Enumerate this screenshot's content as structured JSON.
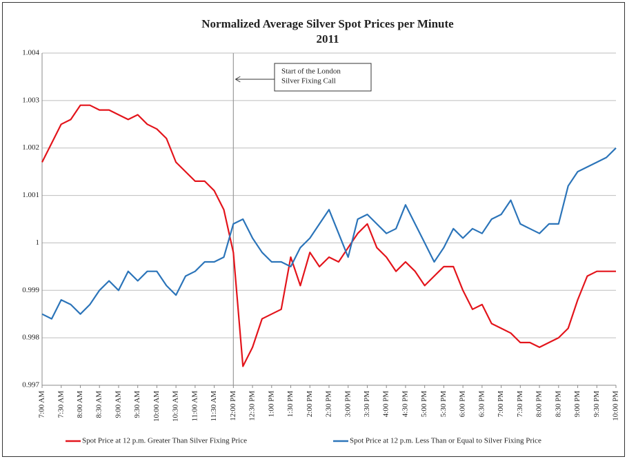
{
  "chart_data": {
    "type": "line",
    "title": "Normalized Average Silver Spot Prices per Minute",
    "subtitle": "2011",
    "categories": [
      "7:00 AM",
      null,
      "7:30 AM",
      null,
      "8:00 AM",
      null,
      "8:30 AM",
      null,
      "9:00 AM",
      null,
      "9:30 AM",
      null,
      "10:00 AM",
      null,
      "10:30 AM",
      null,
      "11:00 AM",
      null,
      "11:30 AM",
      null,
      "12:00 PM",
      null,
      "12:30 PM",
      null,
      "1:00 PM",
      null,
      "1:30 PM",
      null,
      "2:00 PM",
      null,
      "2:30 PM",
      null,
      "3:00 PM",
      null,
      "3:30 PM",
      null,
      "4:00 PM",
      null,
      "4:30 PM",
      null,
      "5:00 PM",
      null,
      "5:30 PM",
      null,
      "6:00 PM",
      null,
      "6:30 PM",
      null,
      "7:00 PM",
      null,
      "7:30 PM",
      null,
      "8:00 PM",
      null,
      "8:30 PM",
      null,
      "9:00 PM",
      null,
      "9:30 PM",
      null,
      "10:00 PM"
    ],
    "series": [
      {
        "name": "Spot Price at 12 p.m. Greater Than Silver Fixing Price",
        "color": "#e3141b",
        "values": [
          1.0017,
          1.0021,
          1.0025,
          1.0026,
          1.0029,
          1.0029,
          1.0028,
          1.0028,
          1.0027,
          1.0026,
          1.0027,
          1.0025,
          1.0024,
          1.0022,
          1.0017,
          1.0015,
          1.0013,
          1.0013,
          1.0011,
          1.0007,
          0.9998,
          0.9974,
          0.9978,
          0.9984,
          0.9985,
          0.9986,
          0.9997,
          0.9991,
          0.9998,
          0.9995,
          0.9997,
          0.9996,
          0.9999,
          1.0002,
          1.0004,
          0.9999,
          0.9997,
          0.9994,
          0.9996,
          0.9994,
          0.9991,
          0.9993,
          0.9995,
          0.9995,
          0.999,
          0.9986,
          0.9987,
          0.9983,
          0.9982,
          0.9981,
          0.9979,
          0.9979,
          0.9978,
          0.9979,
          0.998,
          0.9982,
          0.9988,
          0.9993,
          0.9994,
          0.9994,
          0.9994
        ]
      },
      {
        "name": "Spot Price at 12 p.m. Less Than or Equal to Silver Fixing Price",
        "color": "#2b74b9",
        "values": [
          0.9985,
          0.9984,
          0.9988,
          0.9987,
          0.9985,
          0.9987,
          0.999,
          0.9992,
          0.999,
          0.9994,
          0.9992,
          0.9994,
          0.9994,
          0.9991,
          0.9989,
          0.9993,
          0.9994,
          0.9996,
          0.9996,
          0.9997,
          1.0004,
          1.0005,
          1.0001,
          0.9998,
          0.9996,
          0.9996,
          0.9995,
          0.9999,
          1.0001,
          1.0004,
          1.0007,
          1.0002,
          0.9997,
          1.0005,
          1.0006,
          1.0004,
          1.0002,
          1.0003,
          1.0008,
          1.0004,
          1.0,
          0.9996,
          0.9999,
          1.0003,
          1.0001,
          1.0003,
          1.0002,
          1.0005,
          1.0006,
          1.0009,
          1.0004,
          1.0003,
          1.0002,
          1.0004,
          1.0004,
          1.0012,
          1.0015,
          1.0016,
          1.0017,
          1.0018,
          1.002
        ]
      }
    ],
    "ylim": [
      0.997,
      1.004
    ],
    "yticks": [
      0.997,
      0.998,
      0.999,
      1,
      1.001,
      1.002,
      1.003,
      1.004
    ],
    "grid": true,
    "legend": "bottom",
    "annotation": {
      "text": [
        "Start of the London",
        "Silver Fixing Call"
      ],
      "x": "12:00 PM"
    }
  }
}
